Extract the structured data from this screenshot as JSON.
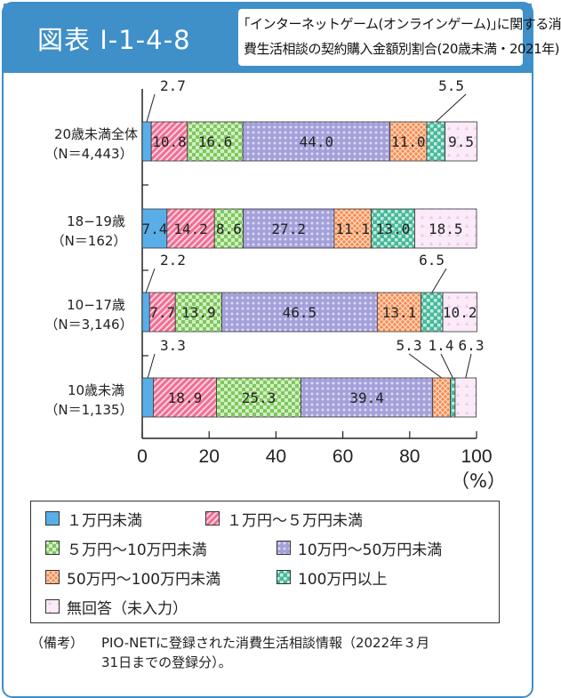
{
  "header": {
    "figure_label": "図表 I-1-4-8",
    "title_line1": "｢インターネットゲーム(オンラインゲーム)｣に関する消",
    "title_line2": "費生活相談の契約購入金額別割合(20歳未満・2021年)"
  },
  "legend_items": [
    "１万円未満",
    "１万円～５万円未満",
    "５万円～10万円未満",
    "10万円～50万円未満",
    "50万円～100万円未満",
    "100万円以上",
    "無回答（未入力）"
  ],
  "note": {
    "label": "（備考）",
    "line1": "PIO-NETに登録された消費生活相談情報（2022年３月",
    "line2": "31日までの登録分）。"
  },
  "colors": {
    "header": "#3f8fc9",
    "series": [
      "#5aaee8",
      "#f06e93",
      "#7ec85e",
      "#a4a0da",
      "#f18a4e",
      "#47b89a",
      "#eec6ea"
    ]
  },
  "chart_data": {
    "type": "bar",
    "orientation": "horizontal",
    "stacked": true,
    "categories": [
      [
        "20歳未満全体",
        "（N＝4,443）"
      ],
      [
        "18−19歳",
        "（N＝162）"
      ],
      [
        "10−17歳",
        "（N＝3,146）"
      ],
      [
        "10歳未満",
        "（N＝1,135）"
      ]
    ],
    "series": [
      {
        "name": "１万円未満",
        "values": [
          2.7,
          7.4,
          2.2,
          3.3
        ]
      },
      {
        "name": "１万円～５万円未満",
        "values": [
          10.8,
          14.2,
          7.7,
          18.9
        ]
      },
      {
        "name": "５万円～10万円未満",
        "values": [
          16.6,
          8.6,
          13.9,
          25.3
        ]
      },
      {
        "name": "10万円～50万円未満",
        "values": [
          44.0,
          27.2,
          46.5,
          39.4
        ]
      },
      {
        "name": "50万円～100万円未満",
        "values": [
          11.0,
          11.1,
          13.1,
          5.3
        ]
      },
      {
        "name": "100万円以上",
        "values": [
          5.5,
          13.0,
          6.5,
          1.4
        ]
      },
      {
        "name": "無回答（未入力）",
        "values": [
          9.5,
          18.5,
          10.2,
          6.3
        ]
      }
    ],
    "value_labels": [
      [
        "2.7",
        "10.8",
        "16.6",
        "44.0",
        "11.0",
        "5.5",
        "9.5"
      ],
      [
        "7.4",
        "14.2",
        "8.6",
        "27.2",
        "11.1",
        "13.0",
        "18.5"
      ],
      [
        "2.2",
        "7.7",
        "13.9",
        "46.5",
        "13.1",
        "6.5",
        "10.2"
      ],
      [
        "3.3",
        "18.9",
        "25.3",
        "39.4",
        "5.3",
        "1.4",
        "6.3"
      ]
    ],
    "x_ticks": [
      "0",
      "20",
      "40",
      "60",
      "80",
      "100"
    ],
    "xlabel": "（%）",
    "xlim": [
      0,
      100
    ],
    "grid": false,
    "legend_position": "bottom"
  }
}
